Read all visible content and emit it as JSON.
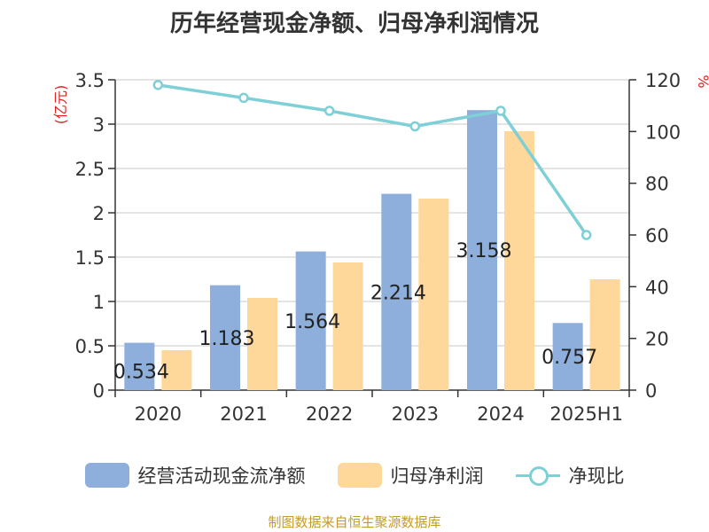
{
  "title": "历年经营现金净额、归母净利润情况",
  "source": "制图数据来自恒生聚源数据库",
  "legend": {
    "cash": "经营活动现金流净额",
    "profit": "归母净利润",
    "ratio": "净现比"
  },
  "left_axis_unit": "(亿元)",
  "right_axis_unit": "%",
  "colors": {
    "cash": "#8eaedb",
    "profit": "#fdd89a",
    "ratio": "#7fd0d6",
    "unit": "#e02020",
    "source": "#c49a2a"
  },
  "chart_data": {
    "type": "bar",
    "categories": [
      "2020",
      "2021",
      "2022",
      "2023",
      "2024",
      "2025H1"
    ],
    "series": [
      {
        "name": "经营活动现金流净额",
        "axis": "left",
        "type": "bar",
        "values": [
          0.534,
          1.183,
          1.564,
          2.214,
          3.158,
          0.757
        ],
        "labels": [
          "0.534",
          "1.183",
          "1.564",
          "2.214",
          "3.158",
          "0.757"
        ]
      },
      {
        "name": "归母净利润",
        "axis": "left",
        "type": "bar",
        "values": [
          0.45,
          1.04,
          1.44,
          2.16,
          2.92,
          1.25
        ]
      },
      {
        "name": "净现比",
        "axis": "right",
        "type": "line",
        "values": [
          118,
          113,
          108,
          102,
          108,
          60
        ]
      }
    ],
    "left_axis": {
      "ylim": [
        0,
        3.5
      ],
      "ticks": [
        "0",
        "0.5",
        "1",
        "1.5",
        "2",
        "2.5",
        "3",
        "3.5"
      ]
    },
    "right_axis": {
      "ylim": [
        0,
        120
      ],
      "ticks": [
        "0",
        "20",
        "40",
        "60",
        "80",
        "100",
        "120"
      ]
    },
    "grid": true,
    "legend_position": "bottom"
  }
}
